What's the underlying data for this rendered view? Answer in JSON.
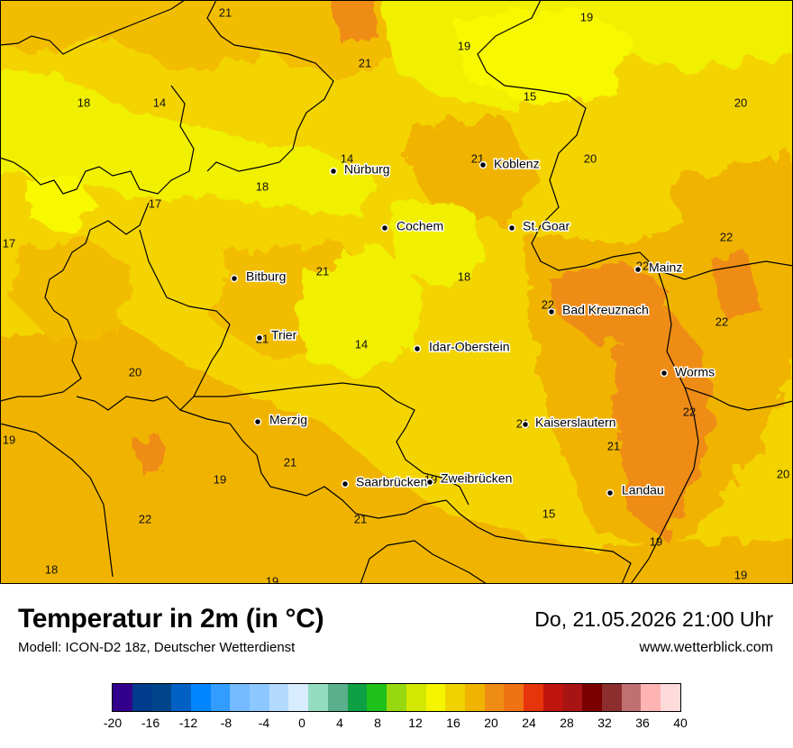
{
  "header": {
    "title": "Temperatur in 2m (in °C)",
    "model": "Modell: ICON-D2 18z, Deutscher Wetterdienst",
    "datetime": "Do, 21.05.2026 21:00 Uhr",
    "website": "www.wetterblick.com"
  },
  "cities": [
    {
      "name": "Nürburg"
    },
    {
      "name": "Koblenz"
    },
    {
      "name": "Cochem"
    },
    {
      "name": "St. Goar"
    },
    {
      "name": "Bitburg"
    },
    {
      "name": "Mainz"
    },
    {
      "name": "Bad Kreuznach"
    },
    {
      "name": "Trier"
    },
    {
      "name": "Idar-Oberstein"
    },
    {
      "name": "Worms"
    },
    {
      "name": "Merzig"
    },
    {
      "name": "Kaiserslautern"
    },
    {
      "name": "Saarbrücken"
    },
    {
      "name": "Zweibrücken"
    },
    {
      "name": "Landau"
    }
  ],
  "values": [
    "21",
    "19",
    "19",
    "21",
    "18",
    "14",
    "15",
    "20",
    "14",
    "21",
    "20",
    "18",
    "17",
    "17",
    "22",
    "21",
    "18",
    "22",
    "22",
    "21",
    "14",
    "20",
    "22",
    "19",
    "21",
    "21",
    "19",
    "21",
    "20",
    "22",
    "19",
    "21",
    "15",
    "22",
    "19",
    "18",
    "19"
  ],
  "legend": {
    "ticks": [
      "-20",
      "-16",
      "-12",
      "-8",
      "-4",
      "0",
      "4",
      "8",
      "12",
      "16",
      "20",
      "24",
      "28",
      "32",
      "36",
      "40"
    ],
    "colors": [
      "#33008c",
      "#003b8c",
      "#00458c",
      "#0060c4",
      "#0084ff",
      "#339cff",
      "#73baff",
      "#8cc8ff",
      "#b3dbff",
      "#d8ecff",
      "#94dcc0",
      "#5aaf8c",
      "#0fa046",
      "#1ec01a",
      "#97d80e",
      "#d3e800",
      "#f5f500",
      "#f0d200",
      "#f0b400",
      "#ef8c14",
      "#ef7312",
      "#e6350a",
      "#c0140f",
      "#a81414",
      "#7a0000",
      "#8c2e2e",
      "#c07070",
      "#ffb4b4",
      "#ffdada"
    ]
  }
}
